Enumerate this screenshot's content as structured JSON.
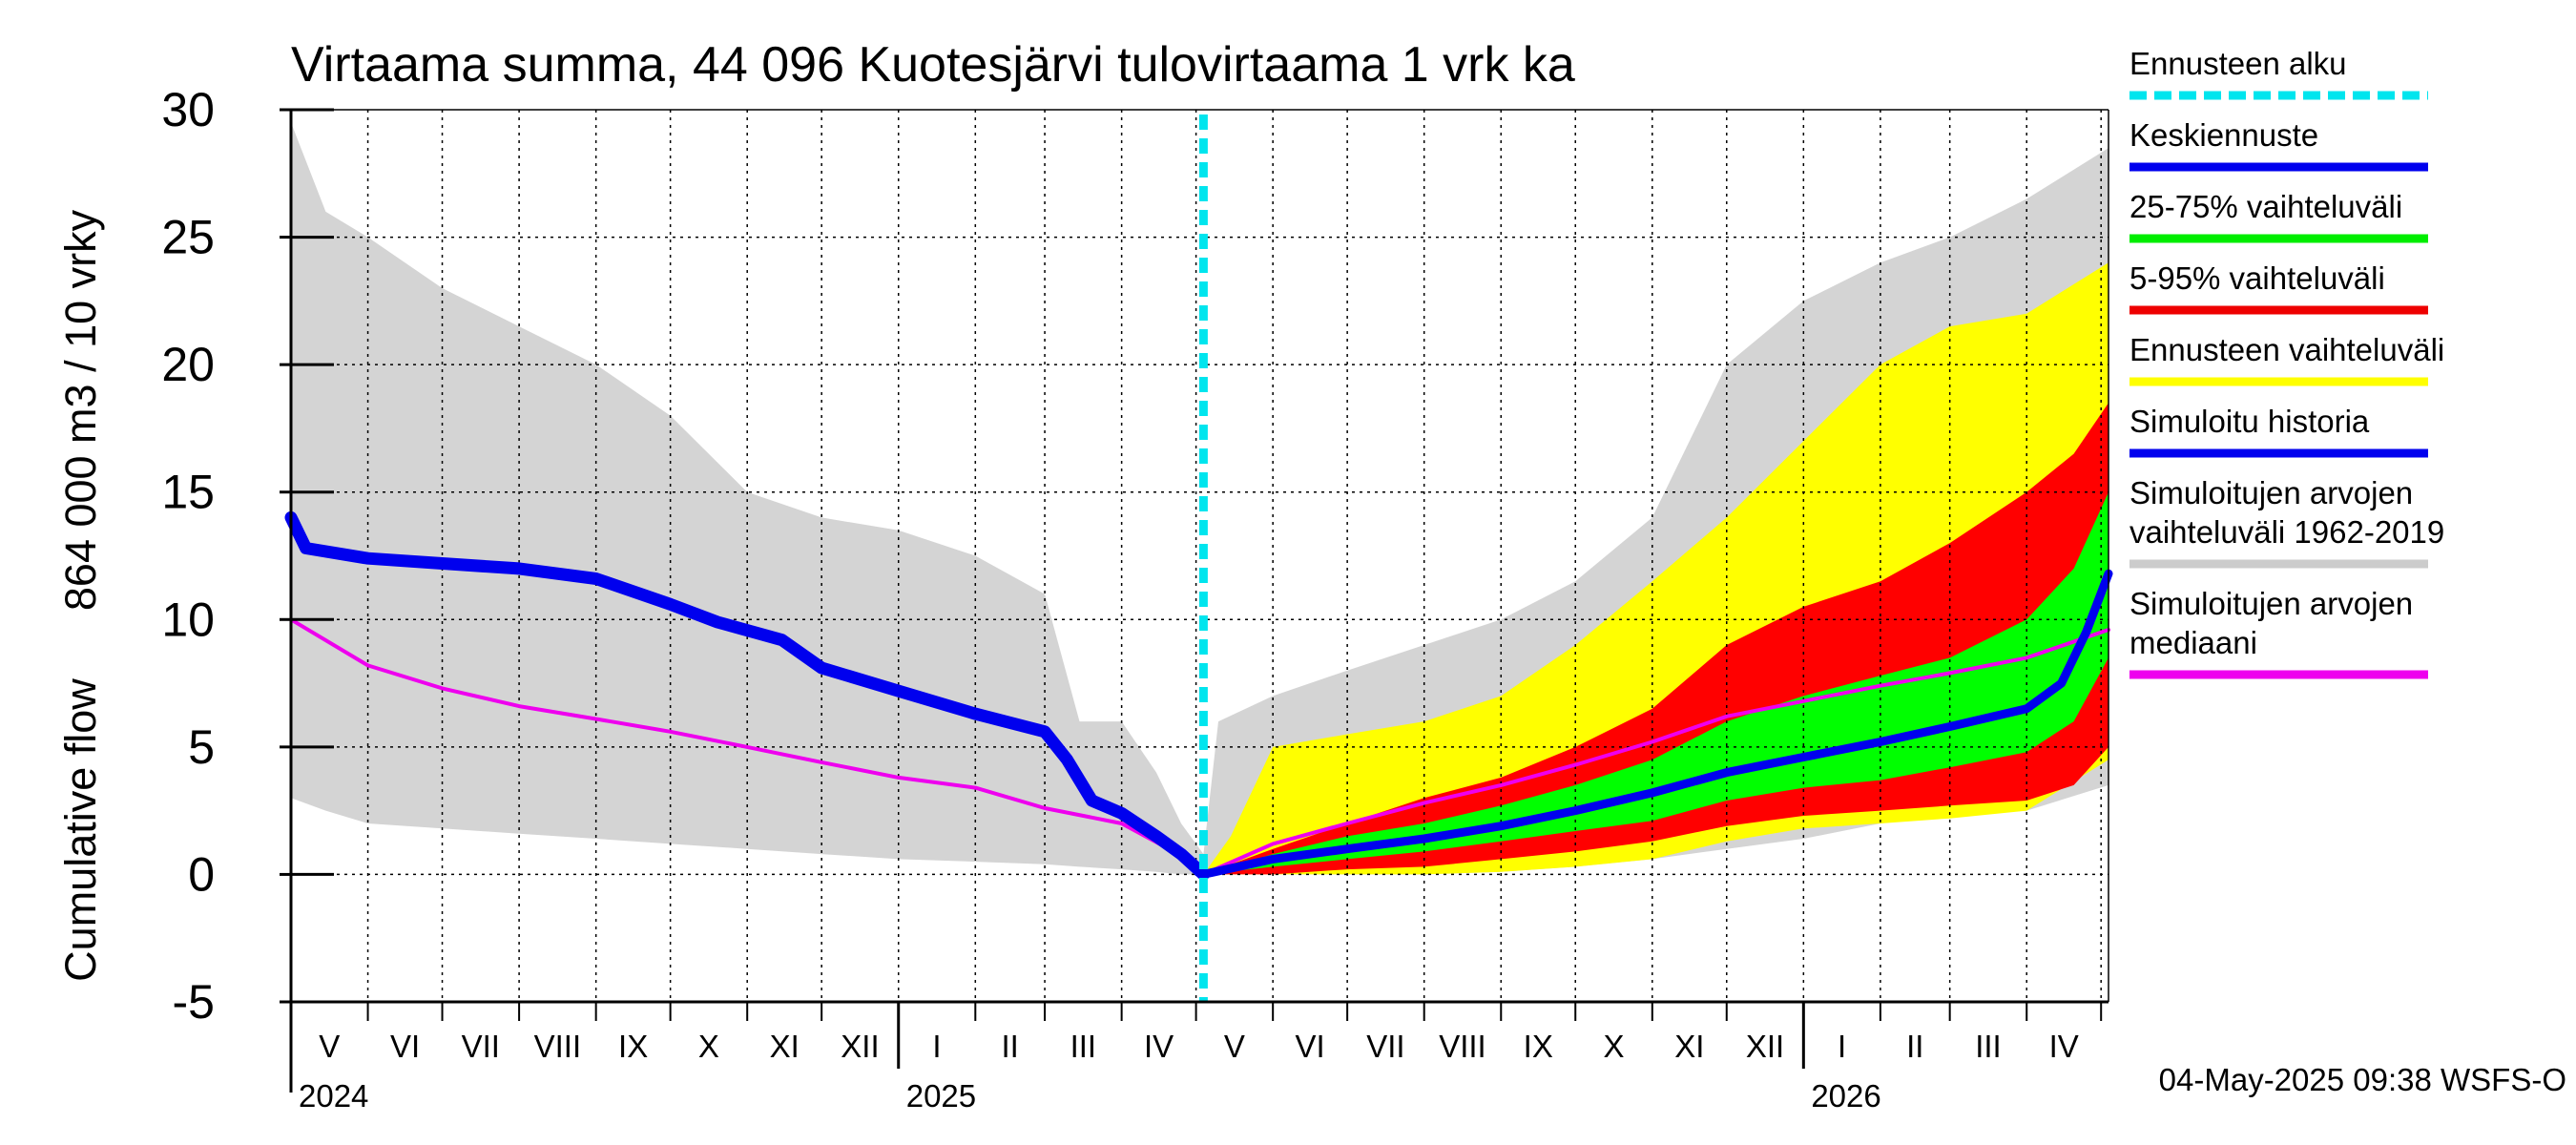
{
  "chart_data": {
    "type": "area",
    "title": "Virtaama summa, 44 096 Kuotesjärvi tulovirtaama 1 vrk ka",
    "ylabel_line1": "864 000 m3 / 10 vrky",
    "ylabel_line2": "Cumulative flow",
    "ylim": [
      -5,
      30
    ],
    "yticks": [
      -5,
      0,
      5,
      10,
      15,
      20,
      25,
      30
    ],
    "x_start": "2024-05-01",
    "x_end": "2026-05-04",
    "forecast_start": "2025-05-04",
    "month_labels": [
      "V",
      "VI",
      "VII",
      "VIII",
      "IX",
      "X",
      "XI",
      "XII",
      "I",
      "II",
      "III",
      "IV",
      "V",
      "VI",
      "VII",
      "VIII",
      "IX",
      "X",
      "XI",
      "XII",
      "I",
      "II",
      "III",
      "IV"
    ],
    "year_labels": [
      {
        "text": "2024",
        "date": "2024-05-01"
      },
      {
        "text": "2025",
        "date": "2025-01-01"
      },
      {
        "text": "2026",
        "date": "2026-01-01"
      }
    ],
    "timestamp": "04-May-2025 09:38 WSFS-O",
    "legend": [
      {
        "label": "Ennusteen alku",
        "color": "#00e5ee",
        "style": "dashed"
      },
      {
        "label": "Keskiennuste",
        "color": "#0000ee",
        "style": "line"
      },
      {
        "label": "25-75% vaihteluväli",
        "color": "#00ee00",
        "style": "line"
      },
      {
        "label": "5-95% vaihteluväli",
        "color": "#ee0000",
        "style": "line"
      },
      {
        "label": "Ennusteen vaihteluväli",
        "color": "#ffff00",
        "style": "line"
      },
      {
        "label": "Simuloitu historia",
        "color": "#0000ee",
        "style": "line"
      },
      {
        "label": "Simuloitujen arvojen vaihteluväli 1962-2019",
        "line1": "Simuloitujen arvojen",
        "line2": "vaihteluväli 1962-2019",
        "color": "#cccccc",
        "style": "line"
      },
      {
        "label": "Simuloitujen arvojen mediaani",
        "line1": "Simuloitujen arvojen",
        "line2": "mediaani",
        "color": "#ee00ee",
        "style": "line"
      }
    ],
    "hist_range": {
      "color": "#d4d4d4",
      "x": [
        "2024-05-01",
        "2024-05-15",
        "2024-06-01",
        "2024-07-01",
        "2024-08-01",
        "2024-09-01",
        "2024-10-01",
        "2024-11-01",
        "2024-12-01",
        "2025-01-01",
        "2025-02-01",
        "2025-03-01",
        "2025-03-15",
        "2025-04-01",
        "2025-04-15",
        "2025-04-25",
        "2025-05-04",
        "2025-05-10",
        "2025-06-01",
        "2025-07-01",
        "2025-08-01",
        "2025-09-01",
        "2025-10-01",
        "2025-11-01",
        "2025-12-01",
        "2026-01-01",
        "2026-02-01",
        "2026-03-01",
        "2026-04-01",
        "2026-05-04"
      ],
      "upper": [
        29.5,
        26,
        25,
        23,
        21.5,
        20,
        18,
        15,
        14,
        13.5,
        12.5,
        11,
        6,
        6,
        4,
        2,
        0.8,
        6,
        7,
        8,
        9,
        10,
        11.5,
        14,
        20,
        22.5,
        24,
        25,
        26.5,
        28.5
      ],
      "lower": [
        3,
        2.5,
        2,
        1.8,
        1.6,
        1.4,
        1.2,
        1,
        0.8,
        0.6,
        0.5,
        0.4,
        0.3,
        0.2,
        0.1,
        0,
        0,
        0,
        0,
        0,
        0,
        0.1,
        0.3,
        0.6,
        1,
        1.4,
        2,
        2.3,
        2.5,
        3.5
      ]
    },
    "forecast_range": {
      "color": "#ffff00",
      "x": [
        "2025-05-04",
        "2025-05-15",
        "2025-06-01",
        "2025-07-01",
        "2025-08-01",
        "2025-09-01",
        "2025-10-01",
        "2025-11-01",
        "2025-12-01",
        "2026-01-01",
        "2026-02-01",
        "2026-03-01",
        "2026-04-01",
        "2026-05-04"
      ],
      "upper": [
        0,
        1.5,
        5,
        5.5,
        6,
        7,
        9,
        11.5,
        14,
        17,
        20,
        21.5,
        22,
        24
      ],
      "lower": [
        0,
        0,
        0,
        0,
        0,
        0.1,
        0.3,
        0.6,
        1.3,
        1.8,
        2,
        2.2,
        2.5,
        4.5
      ]
    },
    "p5_95": {
      "color": "#ff0000",
      "x": [
        "2025-05-04",
        "2025-06-01",
        "2025-07-01",
        "2025-08-01",
        "2025-09-01",
        "2025-10-01",
        "2025-11-01",
        "2025-12-01",
        "2026-01-01",
        "2026-02-01",
        "2026-03-01",
        "2026-04-01",
        "2026-04-20",
        "2026-05-04"
      ],
      "upper": [
        0,
        1,
        2,
        3,
        3.8,
        5,
        6.5,
        9,
        10.5,
        11.5,
        13,
        15,
        16.5,
        18.5
      ],
      "lower": [
        0,
        0,
        0.2,
        0.3,
        0.6,
        0.9,
        1.3,
        1.9,
        2.3,
        2.5,
        2.7,
        2.9,
        3.5,
        5
      ]
    },
    "p25_75": {
      "color": "#00ff00",
      "x": [
        "2025-05-04",
        "2025-06-01",
        "2025-07-01",
        "2025-08-01",
        "2025-09-01",
        "2025-10-01",
        "2025-11-01",
        "2025-12-01",
        "2026-01-01",
        "2026-02-01",
        "2026-03-01",
        "2026-04-01",
        "2026-04-20",
        "2026-05-04"
      ],
      "upper": [
        0,
        0.8,
        1.5,
        2,
        2.7,
        3.5,
        4.5,
        6,
        7,
        7.8,
        8.5,
        10,
        12,
        15
      ],
      "lower": [
        0,
        0.3,
        0.6,
        0.9,
        1.3,
        1.7,
        2.1,
        2.9,
        3.4,
        3.7,
        4.2,
        4.8,
        6,
        8.5
      ]
    },
    "median": {
      "color": "#ee00ee",
      "x": [
        "2024-05-01",
        "2024-06-01",
        "2024-07-01",
        "2024-08-01",
        "2024-09-01",
        "2024-10-01",
        "2024-11-01",
        "2024-12-01",
        "2025-01-01",
        "2025-02-01",
        "2025-03-01",
        "2025-04-01",
        "2025-04-20",
        "2025-05-04",
        "2025-06-01",
        "2025-07-01",
        "2025-08-01",
        "2025-09-01",
        "2025-10-01",
        "2025-11-01",
        "2025-12-01",
        "2026-01-01",
        "2026-02-01",
        "2026-03-01",
        "2026-04-01",
        "2026-05-04"
      ],
      "values": [
        10,
        8.2,
        7.3,
        6.6,
        6.1,
        5.6,
        5,
        4.4,
        3.8,
        3.4,
        2.6,
        2,
        1,
        0,
        1.2,
        2,
        2.8,
        3.5,
        4.3,
        5.2,
        6.2,
        6.8,
        7.4,
        7.9,
        8.5,
        9.6
      ]
    },
    "mean_forecast": {
      "color": "#0000ee",
      "x": [
        "2025-05-04",
        "2025-06-01",
        "2025-07-01",
        "2025-08-01",
        "2025-09-01",
        "2025-10-01",
        "2025-11-01",
        "2025-12-01",
        "2026-01-01",
        "2026-02-01",
        "2026-03-01",
        "2026-04-01",
        "2026-04-15",
        "2026-04-25",
        "2026-05-04"
      ],
      "values": [
        0,
        0.6,
        1,
        1.4,
        1.9,
        2.5,
        3.2,
        4,
        4.6,
        5.2,
        5.8,
        6.5,
        7.5,
        9.5,
        11.8
      ]
    },
    "sim_history": {
      "color": "#0000ee",
      "x": [
        "2024-05-01",
        "2024-05-07",
        "2024-06-01",
        "2024-07-01",
        "2024-08-01",
        "2024-09-01",
        "2024-10-01",
        "2024-10-20",
        "2024-11-15",
        "2024-12-01",
        "2025-01-01",
        "2025-02-01",
        "2025-03-01",
        "2025-03-10",
        "2025-03-20",
        "2025-04-01",
        "2025-04-15",
        "2025-04-25",
        "2025-05-04"
      ],
      "values": [
        14,
        12.8,
        12.4,
        12.2,
        12,
        11.6,
        10.6,
        9.9,
        9.2,
        8.1,
        7.2,
        6.3,
        5.6,
        4.5,
        2.9,
        2.4,
        1.5,
        0.8,
        0
      ]
    }
  }
}
